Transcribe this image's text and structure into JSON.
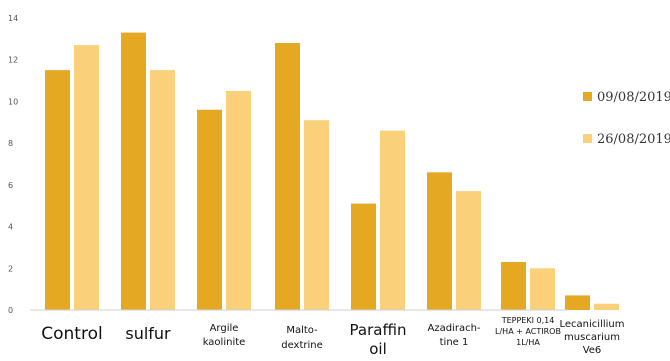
{
  "chart_data": {
    "type": "bar",
    "categories": [
      [
        "Control"
      ],
      [
        "sulfur"
      ],
      [
        "Argile",
        "kaolinite"
      ],
      [
        "Malto-",
        "dextrine"
      ],
      [
        "Paraffin",
        "oil"
      ],
      [
        "Azadirach-",
        "tine 1"
      ],
      [
        "TEPPEKI 0,14",
        "L/HA + ACTIROB",
        "1L/HA"
      ],
      [
        "Lecanicillium",
        "muscarium",
        "Ve6"
      ]
    ],
    "series": [
      {
        "name": "09/08/2019",
        "color": "#E5A823",
        "values": [
          11.5,
          13.3,
          9.6,
          12.8,
          5.1,
          6.6,
          2.3,
          0.7
        ]
      },
      {
        "name": "26/08/2019",
        "color": "#FAD07A",
        "values": [
          12.7,
          11.5,
          10.5,
          9.1,
          8.6,
          5.7,
          2.0,
          0.3
        ]
      }
    ],
    "ylim": [
      0,
      14
    ],
    "yticks": [
      "0",
      "2",
      "4",
      "6",
      "8",
      "10",
      "12",
      "14"
    ],
    "grid": false,
    "legend_position": "right"
  }
}
